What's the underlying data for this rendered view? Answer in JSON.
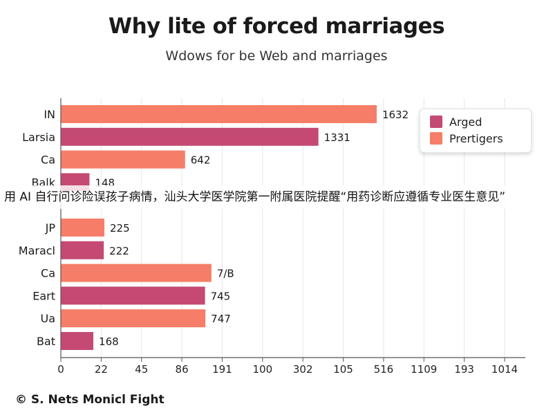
{
  "chart_data": {
    "type": "bar",
    "orientation": "horizontal",
    "title": "Why lite of forced marriages",
    "subtitle": "Wdows for be Web and marriages",
    "categories": [
      "IN",
      "Larsia",
      "Ca",
      "Balk",
      "",
      "JP",
      "Maracl",
      "Ca",
      "Eart",
      "Ua",
      "Bat"
    ],
    "values": [
      1632,
      1331,
      642,
      148,
      null,
      225,
      222,
      778,
      745,
      747,
      168
    ],
    "value_labels": [
      "1632",
      "1331",
      "642",
      "148",
      "",
      "225",
      "222",
      "7/B",
      "745",
      "747",
      "168"
    ],
    "bar_series": [
      "Prertigers",
      "Arged",
      "Prertigers",
      "Arged",
      "Prertigers",
      "Prertigers",
      "Arged",
      "Prertigers",
      "Arged",
      "Prertigers",
      "Arged"
    ],
    "series": [
      {
        "name": "Arged",
        "color": "#c44a73"
      },
      {
        "name": "Prertigers",
        "color": "#f67e68"
      }
    ],
    "x_tick_labels": [
      "0",
      "22",
      "45",
      "86",
      "191",
      "100",
      "302",
      "105",
      "516",
      "1109",
      "193",
      "1014"
    ],
    "xlim": [
      0,
      2400
    ],
    "grid": "vertical",
    "legend_position": "top-right",
    "footer": "© S. Nets Monicl Fight"
  },
  "overlay": {
    "banner_text": "用 AI 自行问诊险误孩子病情，汕头大学医学院第一附属医院提醒“用药诊断应遵循专业医生意见”"
  }
}
